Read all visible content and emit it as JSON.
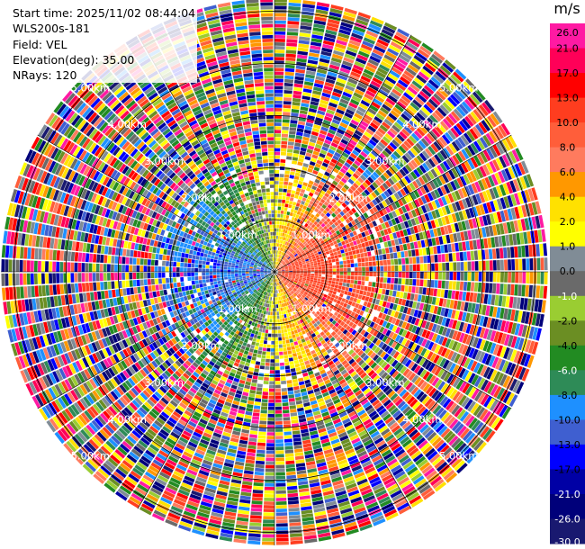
{
  "info": {
    "start_time_label": "Start time:",
    "start_time": "2025/11/02 08:44:04",
    "site": "WLS200s-181",
    "field_label": "Field:",
    "field": "VEL",
    "elevation_label": "Elevation(deg):",
    "elevation": "35.00",
    "nrays_label": "NRays:",
    "nrays": "120"
  },
  "colorbar": {
    "unit": "m/s",
    "bins": [
      {
        "label": "26.0",
        "color": "#ff1aa3"
      },
      {
        "label": "21.0",
        "color": "#ff0058"
      },
      {
        "label": "17.0",
        "color": "#ff0000"
      },
      {
        "label": "13.0",
        "color": "#ff3d1f"
      },
      {
        "label": "10.0",
        "color": "#ff5e3a"
      },
      {
        "label": "8.0",
        "color": "#ff7b5e"
      },
      {
        "label": "6.0",
        "color": "#ff9800"
      },
      {
        "label": "4.0",
        "color": "#ffe100"
      },
      {
        "label": "2.0",
        "color": "#ffff00"
      },
      {
        "label": "1.0",
        "color": "#808c96"
      },
      {
        "label": "0.0",
        "color": "#6a6a6a"
      },
      {
        "label": "-1.0",
        "color": "#9acd32"
      },
      {
        "label": "-2.0",
        "color": "#6b8e23"
      },
      {
        "label": "-4.0",
        "color": "#228b22"
      },
      {
        "label": "-6.0",
        "color": "#2e8b57"
      },
      {
        "label": "-8.0",
        "color": "#1e90ff"
      },
      {
        "label": "-10.0",
        "color": "#3f5fd0"
      },
      {
        "label": "-13.0",
        "color": "#0000ff"
      },
      {
        "label": "-17.0",
        "color": "#0000a5"
      },
      {
        "label": "-21.0",
        "color": "#00007a"
      },
      {
        "label": "-26.0",
        "color": "#191970"
      },
      {
        "label": "-30.0",
        "color": "#000000"
      }
    ]
  },
  "chart_data": {
    "type": "heatmap",
    "projection": "polar",
    "field": "VEL",
    "units": "m/s",
    "nrays": 120,
    "range_rings_km": [
      1.0,
      2.0,
      3.0,
      4.0,
      5.0
    ],
    "range_ring_labels": [
      "1.00km",
      "2.00km",
      "3.00km",
      "4.00km",
      "5.00km"
    ],
    "max_range_km": 5.25,
    "grid": true,
    "spokes_deg": [
      0,
      30,
      60,
      90,
      120,
      150,
      180,
      210,
      240,
      270,
      300,
      330
    ],
    "vlim": [
      -30.0,
      30.0
    ],
    "pattern_summary": {
      "near_west_sector": "negative (approx -6 to -13 m/s)",
      "near_east_sector": "positive (approx +6 to +13 m/s)",
      "near_north_south": "near zero / +2 to +4 m/s",
      "beyond_about_2km": "noise, all colors"
    }
  }
}
